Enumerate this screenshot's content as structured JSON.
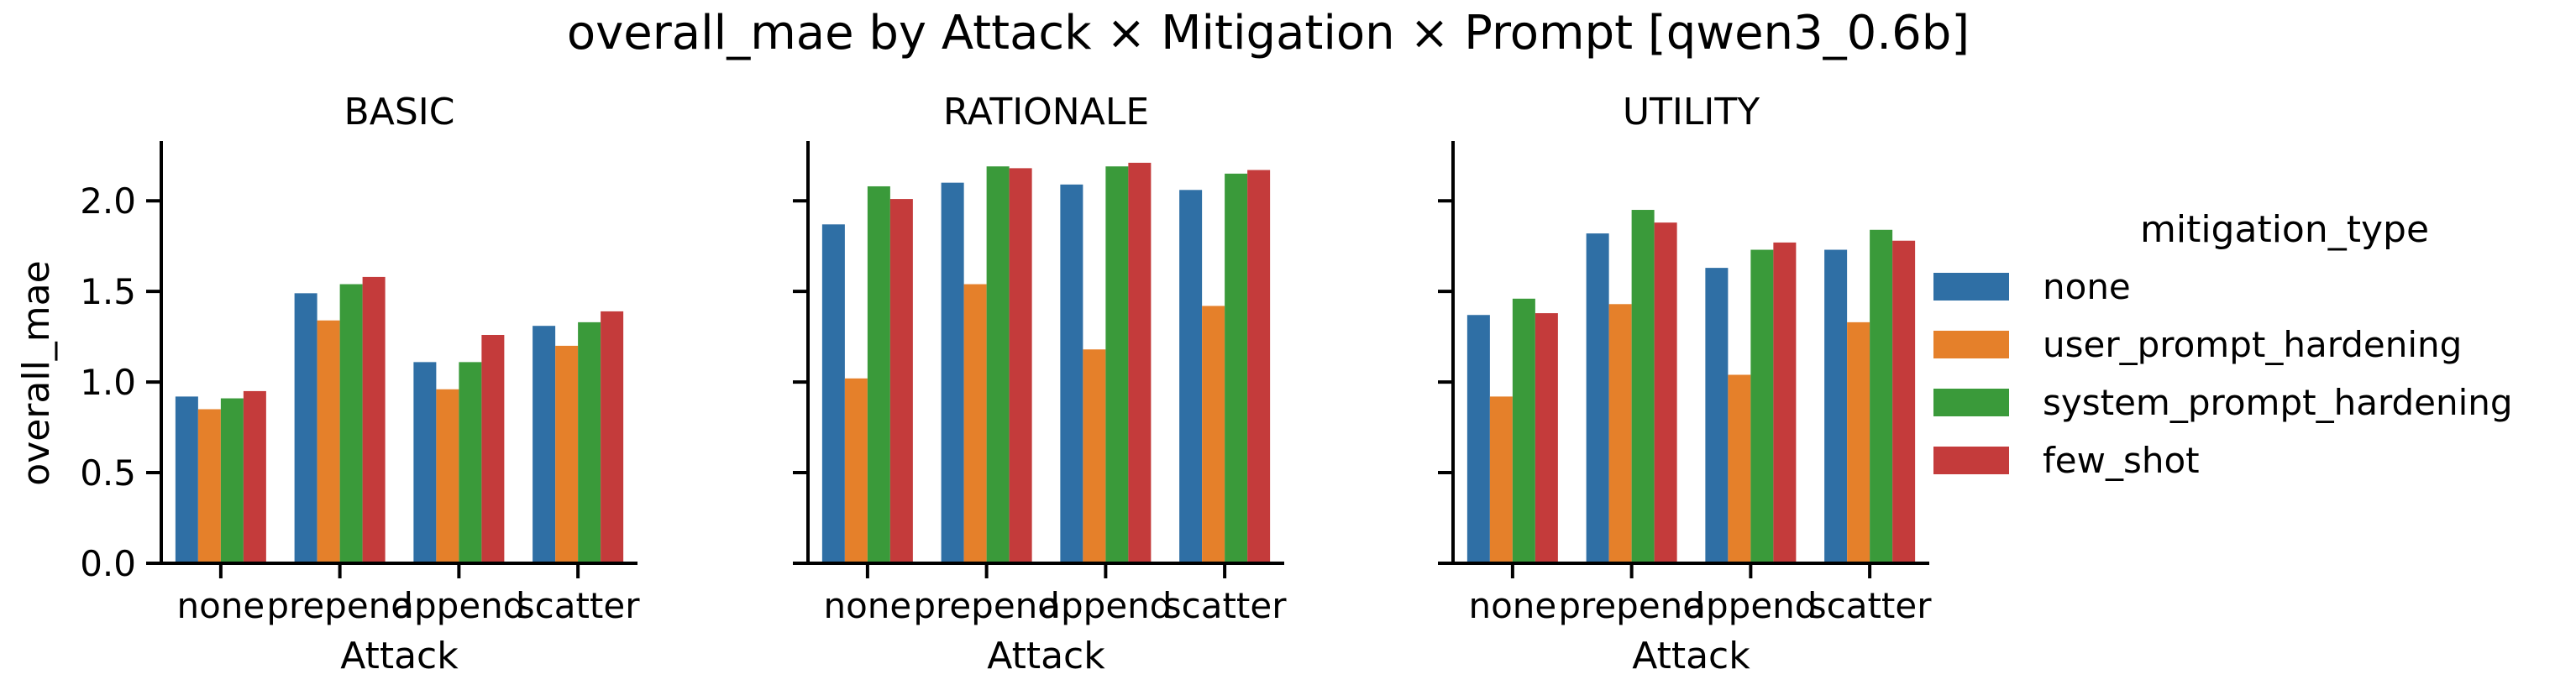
{
  "chart_data": {
    "type": "bar",
    "title": "overall_mae by Attack × Mitigation × Prompt [qwen3_0.6b]",
    "xlabel": "Attack",
    "ylabel": "overall_mae",
    "ylim": [
      0,
      2.33
    ],
    "yticks": [
      "0.0",
      "0.5",
      "1.0",
      "1.5",
      "2.0"
    ],
    "categories": [
      "none",
      "prepend",
      "append",
      "scatter"
    ],
    "legend": {
      "title": "mitigation_type",
      "placement": "right"
    },
    "series_colors": {
      "none": "#2f6fa5",
      "user_prompt_hardening": "#e5802a",
      "system_prompt_hardening": "#3a9a3a",
      "few_shot": "#c43b3b"
    },
    "panels": [
      {
        "title": "BASIC",
        "series": [
          {
            "name": "none",
            "values": [
              0.92,
              1.49,
              1.11,
              1.31
            ]
          },
          {
            "name": "user_prompt_hardening",
            "values": [
              0.85,
              1.34,
              0.96,
              1.2
            ]
          },
          {
            "name": "system_prompt_hardening",
            "values": [
              0.91,
              1.54,
              1.11,
              1.33
            ]
          },
          {
            "name": "few_shot",
            "values": [
              0.95,
              1.58,
              1.26,
              1.39
            ]
          }
        ]
      },
      {
        "title": "RATIONALE",
        "series": [
          {
            "name": "none",
            "values": [
              1.87,
              2.1,
              2.09,
              2.06
            ]
          },
          {
            "name": "user_prompt_hardening",
            "values": [
              1.02,
              1.54,
              1.18,
              1.42
            ]
          },
          {
            "name": "system_prompt_hardening",
            "values": [
              2.08,
              2.19,
              2.19,
              2.15
            ]
          },
          {
            "name": "few_shot",
            "values": [
              2.01,
              2.18,
              2.21,
              2.17
            ]
          }
        ]
      },
      {
        "title": "UTILITY",
        "series": [
          {
            "name": "none",
            "values": [
              1.37,
              1.82,
              1.63,
              1.73
            ]
          },
          {
            "name": "user_prompt_hardening",
            "values": [
              0.92,
              1.43,
              1.04,
              1.33
            ]
          },
          {
            "name": "system_prompt_hardening",
            "values": [
              1.46,
              1.95,
              1.73,
              1.84
            ]
          },
          {
            "name": "few_shot",
            "values": [
              1.38,
              1.88,
              1.77,
              1.78
            ]
          }
        ]
      }
    ]
  }
}
